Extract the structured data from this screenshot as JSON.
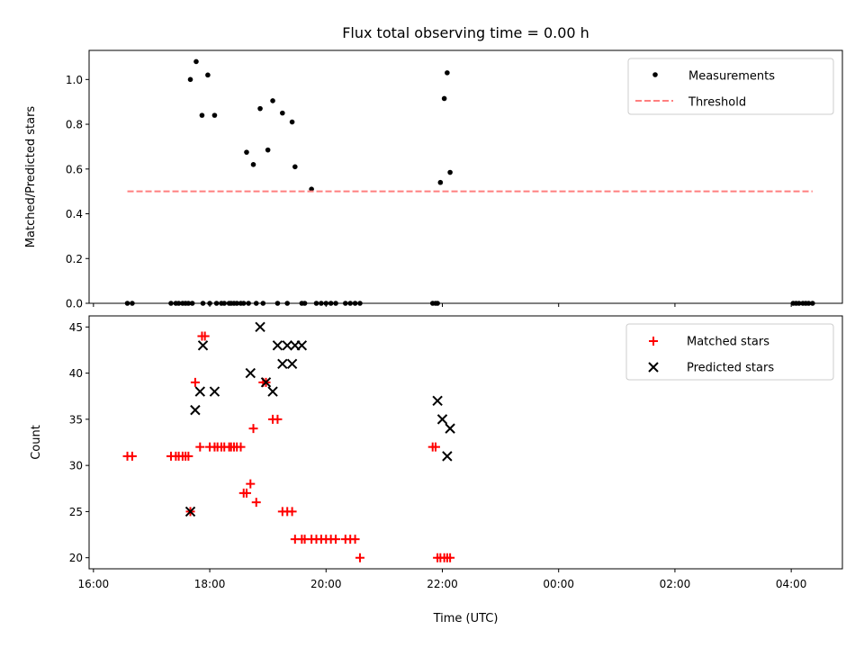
{
  "chart_data": [
    {
      "type": "scatter",
      "title": "Flux total observing time = 0.00 h",
      "xlabel": "",
      "ylabel": "Matched/Predicted stars",
      "ylim": [
        0,
        1.13
      ],
      "yticks": [
        "0.0",
        "0.2",
        "0.4",
        "0.6",
        "0.8",
        "1.0"
      ],
      "legend_position": "top-right",
      "series": [
        {
          "name": "Measurements",
          "kind": "points",
          "color": "#000000",
          "x": [
            "16:35",
            "16:40",
            "17:20",
            "17:25",
            "17:28",
            "17:32",
            "17:35",
            "17:38",
            "17:40",
            "17:42",
            "17:46",
            "17:52",
            "17:53",
            "17:58",
            "18:00",
            "18:05",
            "18:07",
            "18:12",
            "18:15",
            "18:20",
            "18:22",
            "18:25",
            "18:28",
            "18:32",
            "18:35",
            "18:38",
            "18:40",
            "18:45",
            "18:48",
            "18:52",
            "18:55",
            "19:00",
            "19:05",
            "19:10",
            "19:15",
            "19:20",
            "19:25",
            "19:28",
            "19:35",
            "19:38",
            "19:45",
            "19:50",
            "19:55",
            "20:00",
            "20:05",
            "20:10",
            "20:20",
            "20:25",
            "20:30",
            "20:35",
            "21:50",
            "21:53",
            "21:55",
            "21:58",
            "22:02",
            "22:05",
            "22:08",
            "04:02",
            "04:05",
            "04:08",
            "04:12",
            "04:15",
            "04:18",
            "04:22"
          ],
          "y": [
            0,
            0,
            0,
            0,
            0,
            0,
            0,
            0,
            1.0,
            0,
            1.08,
            0.84,
            0,
            1.02,
            0,
            0.84,
            0,
            0,
            0,
            0,
            0,
            0,
            0,
            0,
            0,
            0.675,
            0,
            0.62,
            0,
            0.87,
            0,
            0.685,
            0.905,
            0,
            0.85,
            0,
            0.81,
            0.61,
            0,
            0,
            0.51,
            0,
            0,
            0,
            0,
            0,
            0,
            0,
            0,
            0,
            0,
            0,
            0,
            0.54,
            0.915,
            1.03,
            0.585,
            0,
            0,
            0,
            0,
            0,
            0,
            0
          ]
        },
        {
          "name": "Threshold",
          "kind": "dashed-line",
          "color": "#ff7f7f",
          "x": [
            "16:35",
            "04:22"
          ],
          "y": [
            0.5,
            0.5
          ]
        }
      ]
    },
    {
      "type": "scatter",
      "title": "",
      "xlabel": "Time (UTC)",
      "ylabel": "Count",
      "ylim": [
        18.8,
        46.2
      ],
      "yticks": [
        "20",
        "25",
        "30",
        "35",
        "40",
        "45"
      ],
      "xticks": [
        "16:00",
        "18:00",
        "20:00",
        "22:00",
        "00:00",
        "02:00",
        "04:00"
      ],
      "legend_position": "top-right",
      "series": [
        {
          "name": "Matched stars",
          "kind": "plus",
          "color": "#ff0000",
          "x": [
            "16:35",
            "16:40",
            "17:20",
            "17:25",
            "17:28",
            "17:32",
            "17:35",
            "17:38",
            "17:40",
            "17:45",
            "17:50",
            "17:52",
            "17:55",
            "18:00",
            "18:05",
            "18:08",
            "18:12",
            "18:15",
            "18:20",
            "18:22",
            "18:25",
            "18:28",
            "18:32",
            "18:35",
            "18:38",
            "18:42",
            "18:45",
            "18:48",
            "18:55",
            "18:58",
            "19:05",
            "19:10",
            "19:15",
            "19:20",
            "19:25",
            "19:28",
            "19:35",
            "19:38",
            "19:45",
            "19:50",
            "19:55",
            "20:00",
            "20:05",
            "20:10",
            "20:20",
            "20:25",
            "20:30",
            "20:35",
            "21:50",
            "21:53",
            "21:55",
            "21:58",
            "22:02",
            "22:05",
            "22:08"
          ],
          "y": [
            31,
            31,
            31,
            31,
            31,
            31,
            31,
            31,
            25,
            39,
            32,
            44,
            44,
            32,
            32,
            32,
            32,
            32,
            32,
            32,
            32,
            32,
            32,
            27,
            27,
            28,
            34,
            26,
            39,
            39,
            35,
            35,
            25,
            25,
            25,
            22,
            22,
            22,
            22,
            22,
            22,
            22,
            22,
            22,
            22,
            22,
            22,
            20,
            32,
            32,
            20,
            20,
            20,
            20,
            20
          ]
        },
        {
          "name": "Predicted stars",
          "kind": "x",
          "color": "#000000",
          "x": [
            "17:40",
            "17:45",
            "17:50",
            "17:53",
            "18:05",
            "18:42",
            "18:52",
            "18:58",
            "19:05",
            "19:10",
            "19:15",
            "19:20",
            "19:25",
            "19:28",
            "19:35",
            "21:55",
            "22:00",
            "22:05",
            "22:08"
          ],
          "y": [
            25,
            36,
            38,
            43,
            38,
            40,
            45,
            39,
            38,
            43,
            41,
            43,
            41,
            43,
            43,
            37,
            35,
            31,
            34
          ]
        }
      ]
    }
  ]
}
